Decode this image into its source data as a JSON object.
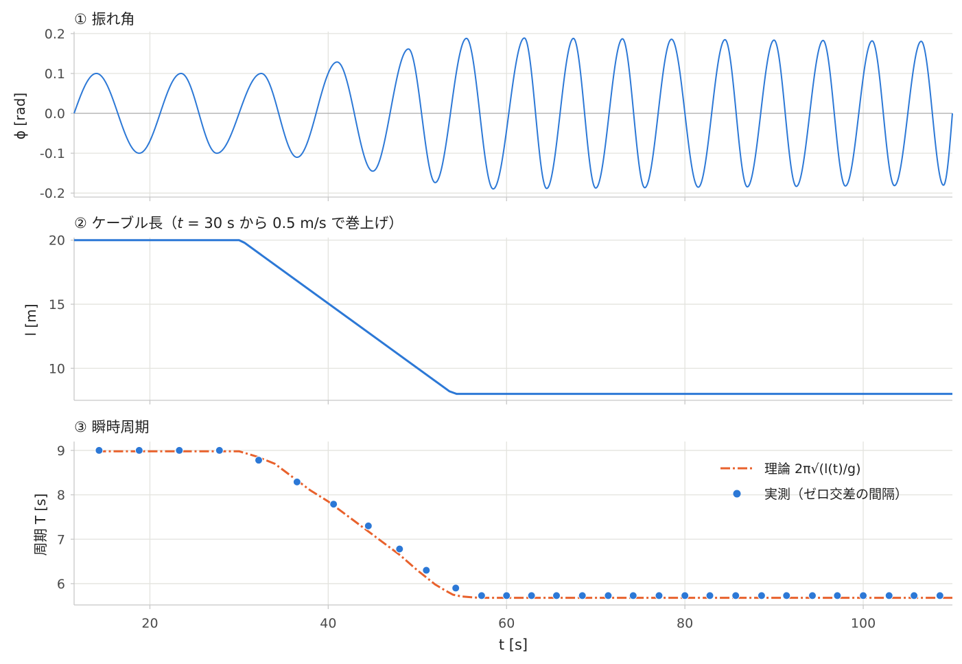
{
  "colors": {
    "blue": "#2c78d6",
    "orange": "#e8612c",
    "grid": "#e3e3de"
  },
  "chart_data": [
    {
      "type": "line",
      "title": "① 振れ角",
      "ylabel": "ϕ [rad]",
      "xlim": [
        11.5,
        110
      ],
      "ylim": [
        -0.21,
        0.205
      ],
      "yticks": [
        -0.2,
        -0.1,
        0.0,
        0.1,
        0.2
      ],
      "ytick_labels": [
        "-0.2",
        "-0.1",
        "0.0",
        "0.1",
        "0.2"
      ],
      "xticks": [
        20,
        40,
        60,
        80,
        100
      ],
      "grid": true,
      "series": [
        {
          "color": "#2c78d6",
          "generator": "damped-pendulum",
          "amp_start": 0.1,
          "amp_peak": 0.19,
          "amp_end": 0.18,
          "x_start": 11.5,
          "x_end": 110,
          "crests": [
            14.0,
            23.5,
            32.5,
            41.0,
            49.0,
            55.5,
            62.0,
            67.5,
            73.0,
            78.5,
            84.5,
            90.0,
            95.5,
            101.0,
            106.5
          ],
          "troughs": [
            18.8,
            27.5,
            36.5,
            45.0,
            52.0,
            58.5,
            64.5,
            70.0,
            75.5,
            81.5,
            87.0,
            92.5,
            98.0,
            103.5,
            109.0
          ]
        }
      ]
    },
    {
      "type": "line",
      "title": "② ケーブル長（t = 30 s から 0.5 m/s で巻上げ）",
      "title_parts": [
        "② ケーブル長（",
        "t",
        " = 30 s から 0.5 m/s で巻上げ）"
      ],
      "ylabel": "l [m]",
      "xlim": [
        11.5,
        110
      ],
      "ylim": [
        7.5,
        20.2
      ],
      "yticks": [
        10,
        15,
        20
      ],
      "ytick_labels": [
        "10",
        "15",
        "20"
      ],
      "xticks": [
        20,
        40,
        60,
        80,
        100
      ],
      "grid": true,
      "series": [
        {
          "color": "#2c78d6",
          "x": [
            11.5,
            30.0,
            30.6,
            53.6,
            54.4,
            110.0
          ],
          "y": [
            20.0,
            20.0,
            19.8,
            8.2,
            8.0,
            8.0
          ]
        }
      ]
    },
    {
      "type": "line",
      "title": "③ 瞬時周期",
      "ylabel": "周期 T [s]",
      "xlabel": "t [s]",
      "xlim": [
        11.5,
        110
      ],
      "ylim": [
        5.52,
        9.2
      ],
      "yticks": [
        6,
        7,
        8,
        9
      ],
      "ytick_labels": [
        "6",
        "7",
        "8",
        "9"
      ],
      "xticks": [
        20,
        40,
        60,
        80,
        100
      ],
      "xtick_labels": [
        "20",
        "40",
        "60",
        "80",
        "100"
      ],
      "grid": true,
      "legend": "top-right",
      "series": [
        {
          "name": "理論 2π√(l(t)/g)",
          "style": "dashdot",
          "color": "#e8612c",
          "x": [
            14.0,
            30.0,
            32.0,
            34.0,
            36.0,
            38.0,
            40.0,
            42.0,
            44.0,
            46.0,
            48.0,
            50.0,
            52.0,
            53.0,
            54.0,
            55.0,
            57.0,
            110.0
          ],
          "y": [
            8.98,
            8.98,
            8.86,
            8.7,
            8.4,
            8.1,
            7.85,
            7.55,
            7.25,
            6.95,
            6.65,
            6.3,
            5.98,
            5.86,
            5.75,
            5.71,
            5.68,
            5.68
          ]
        },
        {
          "name": "実測（ゼロ交差の間隔）",
          "style": "markers",
          "color": "#2c78d6",
          "x": [
            14.3,
            18.8,
            23.3,
            27.8,
            32.2,
            36.5,
            40.6,
            44.5,
            48.0,
            51.0,
            54.3,
            57.2,
            60.0,
            62.8,
            65.6,
            68.5,
            71.4,
            74.2,
            77.1,
            80.0,
            82.8,
            85.7,
            88.6,
            91.4,
            94.3,
            97.1,
            100.0,
            102.9,
            105.7,
            108.6
          ],
          "y": [
            9.0,
            9.0,
            9.0,
            9.0,
            8.78,
            8.29,
            7.79,
            7.3,
            6.78,
            6.3,
            5.9,
            5.73,
            5.73,
            5.73,
            5.73,
            5.73,
            5.73,
            5.73,
            5.73,
            5.73,
            5.73,
            5.73,
            5.73,
            5.73,
            5.73,
            5.73,
            5.73,
            5.73,
            5.73,
            5.73
          ]
        }
      ]
    }
  ]
}
